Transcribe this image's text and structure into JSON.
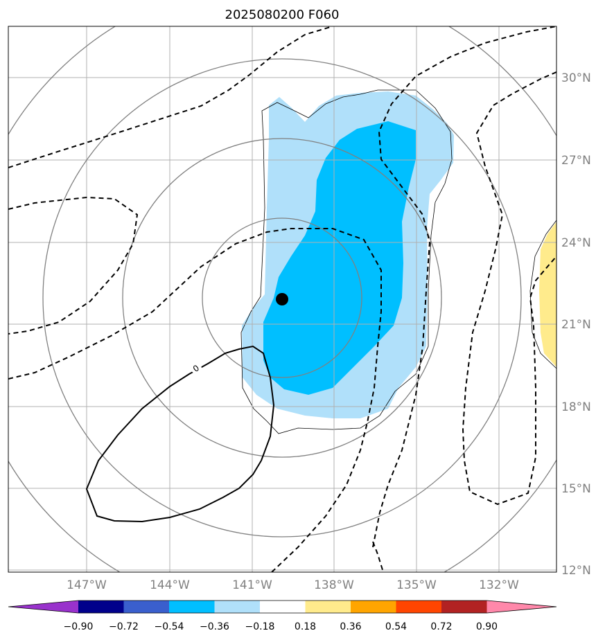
{
  "title": "2025080200 F060",
  "map": {
    "lat_labels": [
      "30°N",
      "27°N",
      "24°N",
      "21°N",
      "18°N",
      "15°N",
      "12°N"
    ],
    "lon_labels": [
      "147°W",
      "144°W",
      "141°W",
      "138°W",
      "135°W",
      "132°W"
    ],
    "contour_zero_label": "0",
    "storm_center": {
      "lat": 22.0,
      "lon": -139.4
    },
    "colors": {
      "light_blue": "#b0e0fa",
      "deep_sky_blue": "#00bfff",
      "yellow": "#ffeb8c",
      "gridline": "#b0b0b0",
      "range_ring": "#808080"
    }
  },
  "colorbar": {
    "labels": [
      "−0.90",
      "−0.72",
      "−0.54",
      "−0.36",
      "−0.18",
      "0.18",
      "0.36",
      "0.54",
      "0.72",
      "0.90"
    ],
    "colors": [
      "#9932cc",
      "#00008b",
      "#3a5fcd",
      "#00bfff",
      "#b0e0fa",
      "#ffffff",
      "#ffeb8c",
      "#ffa500",
      "#ff4500",
      "#b22222",
      "#ff88aa"
    ]
  }
}
